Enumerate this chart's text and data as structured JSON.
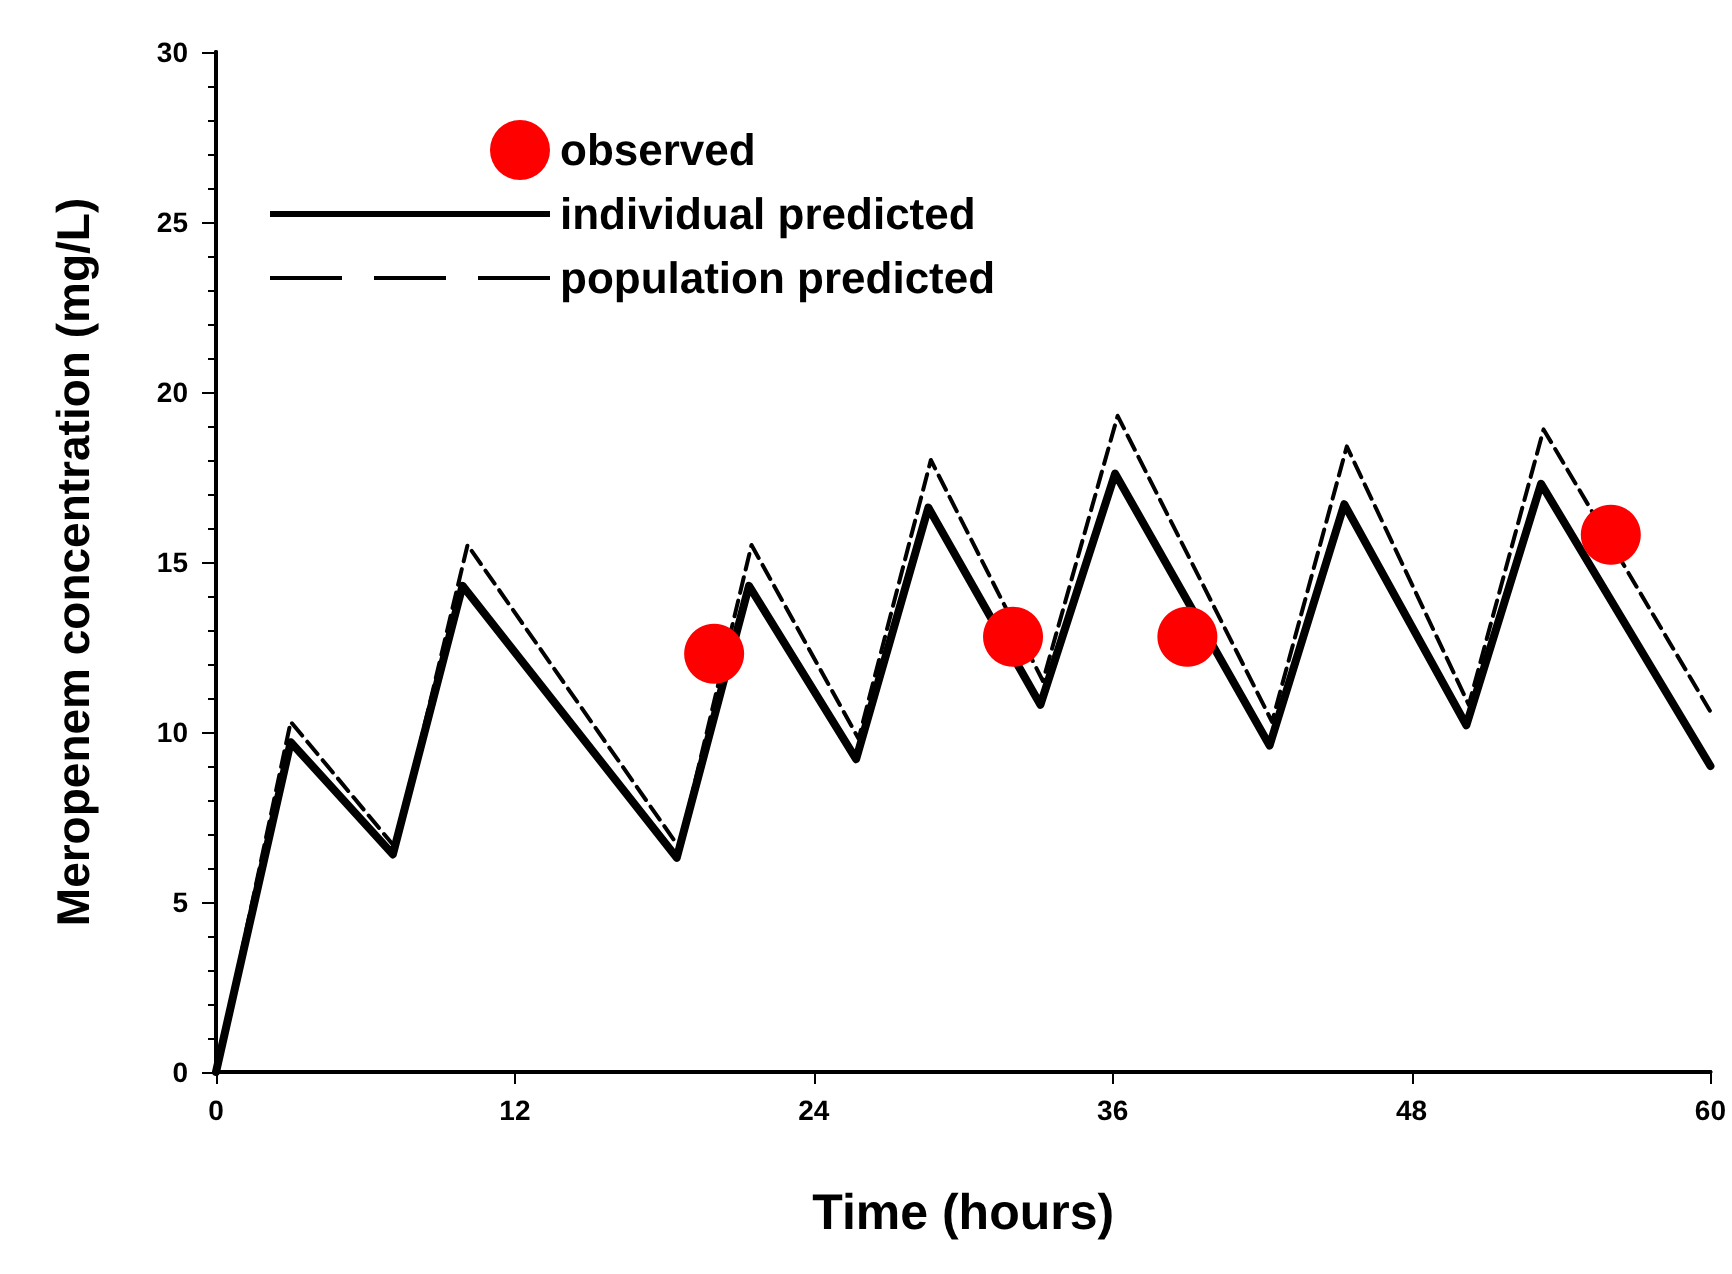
{
  "chart_data": {
    "type": "line",
    "xlabel": "Time (hours)",
    "ylabel": "Meropenem concentration (mg/L)",
    "xlim": [
      0,
      60
    ],
    "xticks": [
      0,
      12,
      24,
      36,
      48,
      60
    ],
    "ylim": [
      0,
      30
    ],
    "yticks": [
      0,
      5,
      10,
      15,
      20,
      25,
      30
    ],
    "grid": false,
    "legend": "top left",
    "marker": "none",
    "series": [
      {
        "name": "observed",
        "type": "scatter",
        "marker": "circle",
        "color": "#ff0000",
        "x": [
          20,
          32,
          39,
          56
        ],
        "values": [
          12.3,
          12.8,
          12.8,
          15.8
        ]
      },
      {
        "name": "individual predicted",
        "color": "#000000",
        "line_style": "solid",
        "x": [
          0,
          3,
          7.1,
          9.9,
          18.5,
          21.4,
          25.7,
          28.6,
          33.1,
          36.1,
          42.3,
          45.3,
          50.2,
          53.2,
          60
        ],
        "values": [
          0,
          9.7,
          6.4,
          14.3,
          6.3,
          14.3,
          9.2,
          16.6,
          10.8,
          17.6,
          9.6,
          16.7,
          10.2,
          17.3,
          9.0
        ]
      },
      {
        "name": "population predicted",
        "color": "#000000",
        "line_style": "dashed",
        "x": [
          0,
          3,
          7.2,
          10.1,
          18.6,
          21.5,
          25.8,
          28.7,
          33.2,
          36.2,
          42.4,
          45.4,
          50.3,
          53.3,
          60
        ],
        "values": [
          0,
          10.3,
          6.6,
          15.5,
          6.6,
          15.5,
          9.8,
          18.0,
          11.5,
          19.3,
          10.3,
          18.4,
          10.8,
          18.9,
          10.6
        ]
      }
    ]
  }
}
